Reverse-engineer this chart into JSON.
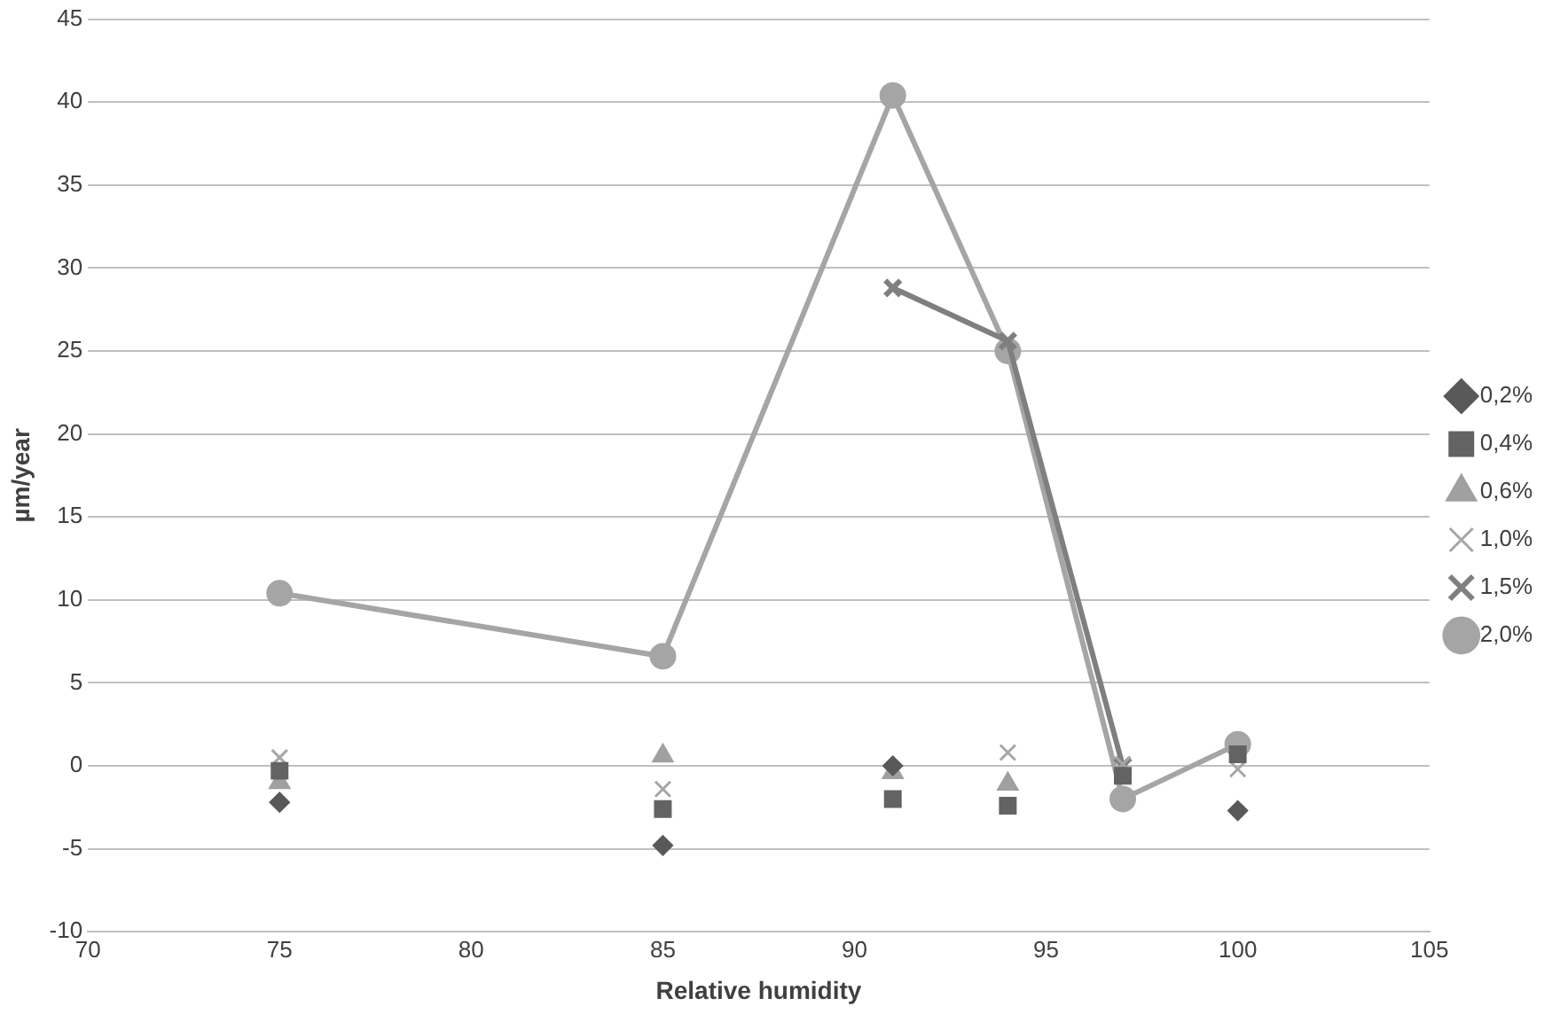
{
  "chart_data": {
    "type": "scatter",
    "xlabel": "Relative humidity",
    "ylabel": "µm/year",
    "x": [
      75,
      85,
      91,
      94,
      97,
      100
    ],
    "xlim": [
      70,
      105
    ],
    "xticks": [
      70,
      75,
      80,
      85,
      90,
      95,
      100,
      105
    ],
    "ylim": [
      -10,
      45
    ],
    "yticks": [
      -10,
      -5,
      0,
      5,
      10,
      15,
      20,
      25,
      30,
      35,
      40,
      45
    ],
    "grid": "y",
    "legend": "right",
    "series": [
      {
        "name": "0,2%",
        "color": "#595959",
        "marker": "diamond",
        "values": [
          -2.2,
          -4.8,
          0,
          null,
          null,
          -2.7
        ]
      },
      {
        "name": "0,4%",
        "color": "#636363",
        "marker": "square",
        "values": [
          -0.3,
          -2.6,
          -2.0,
          -2.4,
          -0.6,
          0.7
        ]
      },
      {
        "name": "0,6%",
        "color": "#a0a0a0",
        "marker": "triangle",
        "values": [
          -1.0,
          0.6,
          -0.4,
          -1.1,
          null,
          null
        ]
      },
      {
        "name": "1,0%",
        "color": "#a6a6a6",
        "marker": "cross",
        "values": [
          0.5,
          -1.4,
          null,
          0.8,
          0.1,
          -0.2
        ]
      },
      {
        "name": "1,5%",
        "color": "#7f7f7f",
        "type": "line",
        "marker": "cross",
        "values": [
          null,
          null,
          28.8,
          25.6,
          0,
          null
        ]
      },
      {
        "name": "2,0%",
        "color": "#a5a5a5",
        "type": "line",
        "marker": "circle",
        "values": [
          10.4,
          6.6,
          40.4,
          25.0,
          -2.0,
          1.3
        ]
      }
    ]
  }
}
